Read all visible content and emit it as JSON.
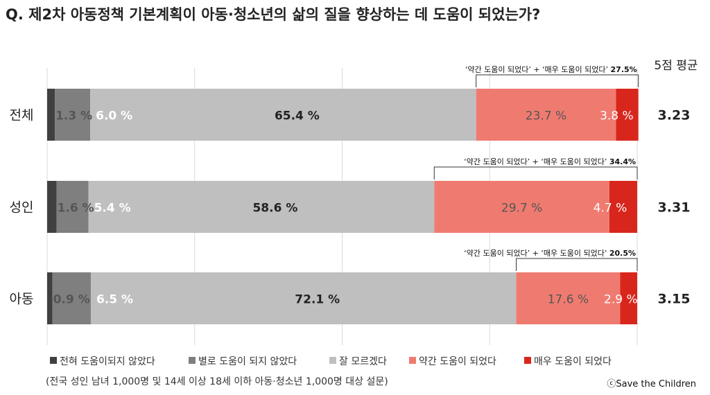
{
  "title": "Q. 제2차 아동정책 기본계획이 아동·청소년의 삶의 질을 향상하는 데 도움이 되었는가?",
  "avg_header": "5점 평균",
  "chart_data": {
    "type": "bar",
    "orientation": "horizontal",
    "stacked": true,
    "categories": [
      "전체",
      "성인",
      "아동"
    ],
    "series": [
      {
        "name": "전혀 도움이되지 않았다",
        "values": [
          1.3,
          1.6,
          0.9
        ],
        "labels": [
          "",
          "",
          ""
        ],
        "color": "#404040"
      },
      {
        "name": "별로 도움이 되지 않았다",
        "values": [
          6.0,
          5.4,
          6.5
        ],
        "labels": [
          "1.3 %",
          "1.6 %",
          "0.9 %"
        ],
        "color": "#7f7f7f"
      },
      {
        "name": "잘 모르겠다",
        "values": [
          65.4,
          58.6,
          72.1
        ],
        "labels": [
          "6.0 %",
          "5.4 %",
          "6.5 %"
        ],
        "color": "#bfbfbf"
      },
      {
        "name": "약간 도움이 되었다",
        "values": [
          23.7,
          29.7,
          17.6
        ],
        "labels": [
          "23.7 %",
          "29.7 %",
          "17.6 %"
        ],
        "color": "#ef7b70"
      },
      {
        "name": "매우 도움이 되었다",
        "values": [
          3.8,
          4.7,
          2.9
        ],
        "labels": [
          "3.8 %",
          "4.7 %",
          "2.9 %"
        ],
        "color": "#d9261c"
      }
    ],
    "unsure_labels": [
      "65.4 %",
      "58.6 %",
      "72.1 %"
    ],
    "averages": [
      "3.23",
      "3.31",
      "3.15"
    ],
    "bracket_text": "‘약간 도움이 되었다’ + ‘매우 도움이 되었다’",
    "bracket_totals": [
      "27.5%",
      "34.4%",
      "20.5%"
    ],
    "xlim": [
      0,
      100
    ],
    "grid": true,
    "legend_position": "bottom"
  },
  "note": "(전국 성인 남녀 1,000명 및 14세 이상 18세 이하 아동·청소년 1,000명 대상 설문)",
  "credit": "ⓒSave the Children"
}
